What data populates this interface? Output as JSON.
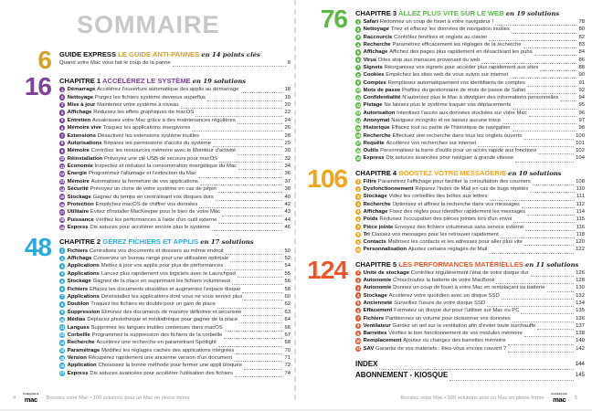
{
  "title": "SOMMAIRE",
  "footer": {
    "left_page_number": "4",
    "right_page_number": "5",
    "brand_small": "Compétence",
    "brand": "mac",
    "tagline": "Boostez votre Mac • 100 solutions pour un Mac en pleine forme"
  },
  "pages": [
    {
      "sections": [
        {
          "big_number": "6",
          "color": "#d4a028",
          "kicker": "GUIDE EXPRESS",
          "title": "LE GUIDE ANTI-PANNES",
          "count_script": "en 14 points clés",
          "items": [
            {
              "num": "",
              "label": "",
              "text": "Quand votre Mac vous fait le coup de la panne",
              "page": "8"
            }
          ]
        },
        {
          "big_number": "16",
          "color": "#7e4299",
          "kicker": "CHAPITRE 1",
          "title": "ACCÉLÉREZ LE SYSTÈME",
          "count_script": "en 19 solutions",
          "items": [
            {
              "num": "1",
              "label": "Démarrage",
              "text": "Accélérez l'ouverture automatique des applis au démarrage",
              "page": "18"
            },
            {
              "num": "2",
              "label": "Nettoyage",
              "text": "Purgez les fichiers système devenus superflus",
              "page": "19"
            },
            {
              "num": "3",
              "label": "Mise à jour",
              "text": "Maintenez votre système à niveau",
              "page": "20"
            },
            {
              "num": "4",
              "label": "Affichage",
              "text": "Réduisez les effets graphiques de macOS",
              "page": "22"
            },
            {
              "num": "5",
              "label": "Entretien",
              "text": "Assainissez votre Mac grâce à des maintenances régulières",
              "page": "24"
            },
            {
              "num": "6",
              "label": "Mémoire vive",
              "text": "Traquez les applications énergivores",
              "page": "26"
            },
            {
              "num": "7",
              "label": "Extensions",
              "text": "Désactivez les extensions système inutiles",
              "page": "28"
            },
            {
              "num": "8",
              "label": "Autorisations",
              "text": "Réparez les permissions d'accès du système",
              "page": "29"
            },
            {
              "num": "9",
              "label": "Mémoire",
              "text": "Contrôlez les ressources mémoire avec le Moniteur d'activité",
              "page": "30"
            },
            {
              "num": "10",
              "label": "Réinstallation",
              "text": "Prévoyez une clé USB de secours pour macOS",
              "page": "32"
            },
            {
              "num": "11",
              "label": "Économie",
              "text": "Inspectez et réduisez la consommation énergétique du Mac",
              "page": "34"
            },
            {
              "num": "12",
              "label": "Énergie",
              "text": "Programmez l'allumage et l'extinction du Mac",
              "page": "36"
            },
            {
              "num": "13",
              "label": "Mémoire",
              "text": "Automatisez la fermeture de vos applications",
              "page": "37"
            },
            {
              "num": "14",
              "label": "Sécurité",
              "text": "Prévoyez un clone de votre système en cas de pépin",
              "page": "38"
            },
            {
              "num": "15",
              "label": "Stockage",
              "text": "Gagnez du temps en centralisant vos disques durs",
              "page": "40"
            },
            {
              "num": "16",
              "label": "Protection",
              "text": "Empêchez macOS de chiffrer vos données",
              "page": "42"
            },
            {
              "num": "17",
              "label": "Utilitaire",
              "text": "Évitez d'installer MacKeeper pour le bien de votre Mac",
              "page": "43"
            },
            {
              "num": "18",
              "label": "Puissance",
              "text": "Vérifiez les performances à l'aide d'un outil externe",
              "page": "44"
            },
            {
              "num": "19",
              "label": "Express",
              "text": "Dix astuces pour accélérer encore plus le système",
              "page": "46"
            }
          ]
        },
        {
          "big_number": "48",
          "color": "#2baae2",
          "kicker": "CHAPITRE 2",
          "title": "GÉREZ FICHIERS ET APPLIS",
          "count_script": "en 17 solutions",
          "items": [
            {
              "num": "1",
              "label": "Fichiers",
              "text": "Centralisez vos documents et dossiers au même endroit",
              "page": "50"
            },
            {
              "num": "2",
              "label": "Affichage",
              "text": "Conservez un bureau rangé pour une utilisation optimale",
              "page": "52"
            },
            {
              "num": "3",
              "label": "Applications",
              "text": "Mettez à jour vos applis pour plus de performances",
              "page": "54"
            },
            {
              "num": "4",
              "label": "Applications",
              "text": "Lancez plus rapidement vos logiciels avec le Launchpad",
              "page": "55"
            },
            {
              "num": "5",
              "label": "Stockage",
              "text": "Gagnez de la place en supprimant les fichiers volumineux",
              "page": "56"
            },
            {
              "num": "6",
              "label": "Fichiers",
              "text": "Effacez les documents obsolètes et augmentez l'espace disque",
              "page": "58"
            },
            {
              "num": "7",
              "label": "Applications",
              "text": "Désinstallez les applications dont vous ne vous servez plus",
              "page": "60"
            },
            {
              "num": "8",
              "label": "Doublon",
              "text": "Traquez les fichiers en double pour un gain de place",
              "page": "62"
            },
            {
              "num": "9",
              "label": "Suppression",
              "text": "Éliminez des documents de manière définitive et sécurisée",
              "page": "63"
            },
            {
              "num": "10",
              "label": "Médias",
              "text": "Déplacez photothèque et médiathèque pour gagner de la place",
              "page": "64"
            },
            {
              "num": "11",
              "label": "Langues",
              "text": "Supprimez les langues inutiles contenues dans macOS",
              "page": "66"
            },
            {
              "num": "12",
              "label": "Corbeille",
              "text": "Programmez la suppression des fichiers de la corbeille",
              "page": "67"
            },
            {
              "num": "13",
              "label": "Recherche",
              "text": "Accélérez une recherche en paramétrant Spotlight",
              "page": "68"
            },
            {
              "num": "14",
              "label": "Paramétrage",
              "text": "Modifiez les réglages cachés des applications intégrées",
              "page": "70"
            },
            {
              "num": "15",
              "label": "Version",
              "text": "Récupérez rapidement une ancienne version d'un document",
              "page": "71"
            },
            {
              "num": "16",
              "label": "Application",
              "text": "Choisissez la bonne méthode pour fermer une appli bloquée",
              "page": "72"
            },
            {
              "num": "17",
              "label": "Express",
              "text": "Dix astuces avancées pour accélérer l'utilisation des fichiers",
              "page": "74"
            }
          ]
        }
      ]
    },
    {
      "sections": [
        {
          "big_number": "76",
          "color": "#5eb848",
          "kicker": "CHAPITRE 3",
          "title": "ALLEZ PLUS VITE SUR LE WEB",
          "count_script": "en 19 solutions",
          "items": [
            {
              "num": "1",
              "label": "Safari",
              "text": "Redonnez un coup de fouet à votre navigateur !",
              "page": "78"
            },
            {
              "num": "2",
              "label": "Nettoyage",
              "text": "Triez et effacez les données de navigation inutiles",
              "page": "80"
            },
            {
              "num": "3",
              "label": "Raccourcis",
              "text": "Contrôlez fenêtres et onglets au clavier",
              "page": "82"
            },
            {
              "num": "4",
              "label": "Recherche",
              "text": "Paramétrez efficacement les réglages de la recherche",
              "page": "83"
            },
            {
              "num": "5",
              "label": "Affichage",
              "text": "Affichez des pages plus rapidement en désactivant les pubs",
              "page": "84"
            },
            {
              "num": "6",
              "label": "Virus",
              "text": "Dites stop aux menaces provenant du web",
              "page": "86"
            },
            {
              "num": "7",
              "label": "Signets",
              "text": "Réorganisez vos signets pour accéder plus rapidement aux sites",
              "page": "88"
            },
            {
              "num": "8",
              "label": "Cookies",
              "text": "Empêchez les sites web de vous suivre sur internet",
              "page": "90"
            },
            {
              "num": "9",
              "label": "Comptes",
              "text": "Remplissez automatiquement vos identifiants de comptes",
              "page": "91"
            },
            {
              "num": "10",
              "label": "Mots de passe",
              "text": "Profitez du gestionnaire de mots de passe de Safari",
              "page": "92"
            },
            {
              "num": "11",
              "label": "Confidentialité",
              "text": "N'autorisez plus le Mac à divulguer des informations personnelles",
              "page": "94"
            },
            {
              "num": "12",
              "label": "Pistage",
              "text": "Ne laissez plus le système traquer vos déplacements",
              "page": "95"
            },
            {
              "num": "13",
              "label": "Autorisation",
              "text": "Interdisez l'accès aux données stockées sur votre Mac",
              "page": "96"
            },
            {
              "num": "14",
              "label": "Anonymat",
              "text": "Naviguez incognito et ne laissez aucune trace",
              "page": "97"
            },
            {
              "num": "15",
              "label": "Historique",
              "text": "Effacez tout ou partie de l'historique de navigation",
              "page": "98"
            },
            {
              "num": "16",
              "label": "Recherche",
              "text": "Effectuez une recherche dans tous les onglets ouverts",
              "page": "100"
            },
            {
              "num": "17",
              "label": "Requête",
              "text": "Accélérez vos recherches sur internet",
              "page": "101"
            },
            {
              "num": "18",
              "label": "Outils",
              "text": "Personnalisez la barre d'outils pour un accès rapide aux fonctions",
              "page": "102"
            },
            {
              "num": "19",
              "label": "Express",
              "text": "Dix astuces avancées pour naviguer à grande vitesse",
              "page": "104"
            }
          ]
        },
        {
          "big_number": "106",
          "color": "#f2a41c",
          "kicker": "CHAPITRE 4",
          "title": "BOOSTEZ VOTRE MESSAGERIE",
          "count_script": "en 10 solutions",
          "items": [
            {
              "num": "1",
              "label": "Filtre",
              "text": "Paramétrez l'affichage pour faciliter la consultation des courriers",
              "page": "108"
            },
            {
              "num": "2",
              "label": "Dysfonctionnement",
              "text": "Réparez l'index de Mail en cas de bugs répétés",
              "page": "110"
            },
            {
              "num": "3",
              "label": "Stockage",
              "text": "Videz les corbeilles des boîtes aux lettres",
              "page": "111"
            },
            {
              "num": "4",
              "label": "Recherche",
              "text": "Optimisez et affinez la recherche dans vos messages",
              "page": "112"
            },
            {
              "num": "5",
              "label": "Affichage",
              "text": "Fixez des règles pour identifier rapidement les messages",
              "page": "114"
            },
            {
              "num": "6",
              "label": "Poids",
              "text": "Réduisez l'occupation des pièces jointes lors d'un envoi",
              "page": "115"
            },
            {
              "num": "7",
              "label": "Pièce jointe",
              "text": "Envoyez des fichiers volumineux sans service externe",
              "page": "116"
            },
            {
              "num": "8",
              "label": "Tri",
              "text": "Classez vos messages pour les retrouver rapidement",
              "page": "118"
            },
            {
              "num": "9",
              "label": "Contacts",
              "text": "Maîtrisez les contacts et les adresses pour aller plus vite",
              "page": "120"
            },
            {
              "num": "10",
              "label": "Personnalisation",
              "text": "Ajustez certains réglages de Mail",
              "page": "122"
            }
          ]
        },
        {
          "big_number": "124",
          "color": "#ec552c",
          "kicker": "CHAPITRE 5",
          "title": "LES PERFORMANCES MATÉRIELLES",
          "count_script": "en 11 solutions",
          "items": [
            {
              "num": "1",
              "label": "Unité de stockage",
              "text": "Contrôlez régulièrement l'état de votre disque dur",
              "page": "126"
            },
            {
              "num": "2",
              "label": "Autonomie",
              "text": "Chouchoutez la batterie de votre MacBook",
              "page": "128"
            },
            {
              "num": "3",
              "label": "Autonomie",
              "text": "Donnez un coup de fouet à votre Mac en remplaçant sa batterie",
              "page": "130"
            },
            {
              "num": "4",
              "label": "Stockage",
              "text": "Accélérez votre quotidien avec un disque SSD",
              "page": "132"
            },
            {
              "num": "5",
              "label": "Ancienneté",
              "text": "Surveillez l'usure de votre disque SSD",
              "page": "134"
            },
            {
              "num": "6",
              "label": "Effacement",
              "text": "Formatez un disque dur pour l'utiliser sur Mac ou PC",
              "page": "135"
            },
            {
              "num": "7",
              "label": "Fichiers",
              "text": "Partitionnez un volume pour cloisonner vos données",
              "page": "136"
            },
            {
              "num": "8",
              "label": "Ventilateur",
              "text": "Gardez un œil sur la ventilation afin d'éviter toute surchauffe",
              "page": "137"
            },
            {
              "num": "9",
              "label": "Barrettes",
              "text": "Vérifiez le bon fonctionnement de vos modules mémoire",
              "page": "138"
            },
            {
              "num": "10",
              "label": "Remplacement",
              "text": "Ajoutez ou changez des barrettes mémoire",
              "page": "140"
            },
            {
              "num": "11",
              "label": "SAV",
              "text": "Garantie de vos matériels : êtes-vous encore couvert ?",
              "page": "142"
            }
          ]
        }
      ],
      "extras": [
        {
          "label": "INDEX",
          "page": "144"
        },
        {
          "label": "ABONNEMENT - KIOSQUE",
          "page": "145"
        }
      ]
    }
  ]
}
